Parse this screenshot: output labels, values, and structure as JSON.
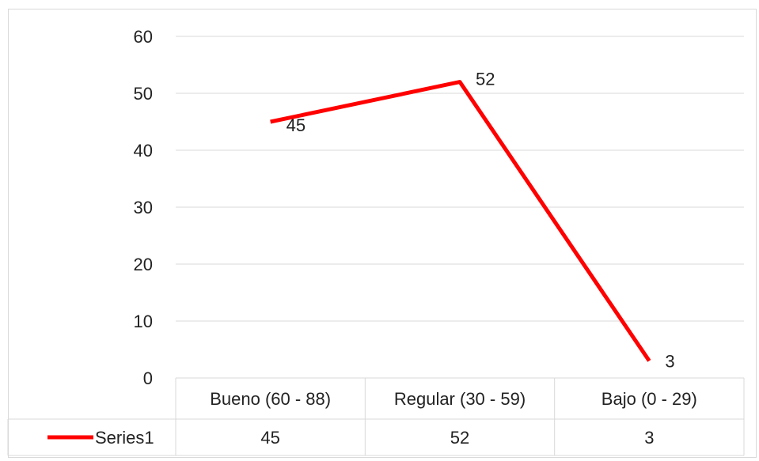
{
  "chart_data": {
    "type": "line",
    "categories": [
      "Bueno  (60 - 88)",
      "Regular (30 - 59)",
      "Bajo (0 - 29)"
    ],
    "series": [
      {
        "name": "Series1",
        "values": [
          45,
          52,
          3
        ],
        "color": "#ff0000"
      }
    ],
    "ylim": [
      0,
      60
    ],
    "yticks": [
      0,
      10,
      20,
      30,
      40,
      50,
      60
    ],
    "data_labels": [
      "45",
      "52",
      "3"
    ],
    "grid": true,
    "data_table": true
  }
}
